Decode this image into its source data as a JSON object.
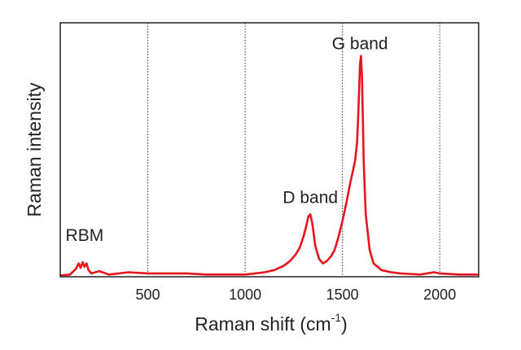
{
  "chart_data": {
    "type": "line",
    "title": "",
    "xlabel": "Raman shift (cm",
    "xlabel_superscript": "-1",
    "xlabel_close": ")",
    "ylabel": "Raman intensity",
    "xlim": [
      50,
      2200
    ],
    "ylim": [
      0,
      1.0
    ],
    "y_ticks_shown": false,
    "grid": "vertical dotted at x ticks",
    "x_ticks": [
      500,
      1000,
      1500,
      2000
    ],
    "x_tick_labels": [
      "500",
      "1000",
      "1500",
      "2000"
    ],
    "annotations": [
      {
        "text": "RBM",
        "x": 175,
        "y": 0.16
      },
      {
        "text": "D band",
        "x": 1335,
        "y": 0.33
      },
      {
        "text": "G band",
        "x": 1590,
        "y": 1.02
      }
    ],
    "series": [
      {
        "color": "#e8141b",
        "x": [
          50,
          100,
          130,
          145,
          155,
          165,
          175,
          185,
          195,
          210,
          250,
          300,
          400,
          500,
          600,
          700,
          800,
          900,
          1000,
          1050,
          1100,
          1150,
          1200,
          1230,
          1260,
          1280,
          1300,
          1315,
          1325,
          1335,
          1345,
          1360,
          1380,
          1400,
          1420,
          1440,
          1460,
          1480,
          1500,
          1520,
          1540,
          1555,
          1565,
          1575,
          1580,
          1585,
          1590,
          1595,
          1600,
          1605,
          1610,
          1620,
          1640,
          1660,
          1700,
          1750,
          1800,
          1900,
          1970,
          2000,
          2100,
          2200
        ],
        "y": [
          0.005,
          0.01,
          0.035,
          0.06,
          0.04,
          0.065,
          0.045,
          0.06,
          0.03,
          0.015,
          0.025,
          0.01,
          0.02,
          0.015,
          0.015,
          0.015,
          0.01,
          0.01,
          0.01,
          0.015,
          0.02,
          0.03,
          0.05,
          0.07,
          0.1,
          0.13,
          0.18,
          0.23,
          0.27,
          0.28,
          0.24,
          0.14,
          0.08,
          0.06,
          0.07,
          0.09,
          0.12,
          0.18,
          0.25,
          0.33,
          0.42,
          0.48,
          0.52,
          0.6,
          0.7,
          0.82,
          0.95,
          0.99,
          0.9,
          0.7,
          0.5,
          0.28,
          0.12,
          0.06,
          0.03,
          0.02,
          0.015,
          0.01,
          0.02,
          0.015,
          0.01,
          0.01
        ]
      }
    ]
  }
}
